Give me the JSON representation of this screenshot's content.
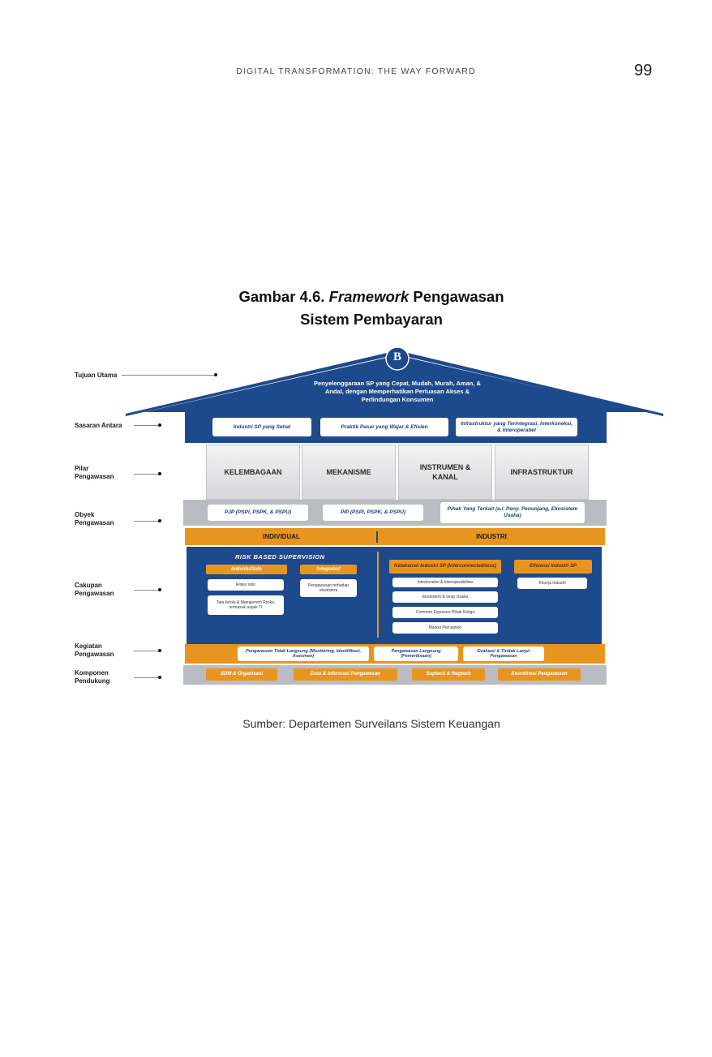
{
  "header": {
    "running_title": "DIGITAL TRANSFORMATION: THE WAY FORWARD",
    "page_number": "99"
  },
  "figure": {
    "title_prefix": "Gambar 4.6. ",
    "title_italic": "Framework",
    "title_suffix": " Pengawasan",
    "title_line2": "Sistem Pembayaran",
    "source": "Sumber: Departemen Surveilans Sistem Keuangan"
  },
  "diagram": {
    "labels": {
      "tujuan_utama": "Tujuan Utama",
      "sasaran_antara": "Sasaran Antara",
      "pilar_1": "Pilar",
      "pilar_2": "Pengawasan",
      "obyek_1": "Obyek",
      "obyek_2": "Pengawasan",
      "cakupan_1": "Cakupan",
      "cakupan_2": "Pengawasan",
      "kegiatan_1": "Kegiatan",
      "kegiatan_2": "Pengawasan",
      "komponen_1": "Komponen",
      "komponen_2": "Pendukung"
    },
    "roof": {
      "logo": "B",
      "line1": "Penyelenggaraan SP yang Cepat, Mudah, Murah, Aman, &",
      "line2": "Andal, dengan Memperhatikan Perluasan Akses &",
      "line3": "Perlindungan Konsumen"
    },
    "sasaran": [
      "Industri SP yang Sehat",
      "Praktik Pasar yang Wajar & Efisien",
      "Infrastruktur yang Terintegrasi, Interkoneksi, & Interoperabel"
    ],
    "pilar": [
      "KELEMBAGAAN",
      "MEKANISME",
      "INSTRUMEN & KANAL",
      "INFRASTRUKTUR"
    ],
    "obyek": [
      "PJP (PSPI, PSPK, & PSPU)",
      "PIP (PSPI, PSPK, & PSPU)",
      "Pihak Yang Terkait (a.l. Peny. Penunjang, Ekosistem Usaha)"
    ],
    "split": {
      "left": "INDIVIDUAL",
      "right": "INDUSTRI"
    },
    "cakupan": {
      "rbs": "RISK BASED SUPERVISION",
      "individu": "Individu/Solo",
      "integrated": "Integrated",
      "risiko_solo": "Risiko solo",
      "tata_kelola": "Tata kelola & Manajemen Risiko, termasuk aspek TI",
      "pengawasan_ekosistem": "Pengawasan terhadap ekosistem",
      "ketahanan": "Ketahanan Industri SP (Interconnectedness)",
      "efisiensi": "Efisiensi Industri SP",
      "interkoneksi": "Interkoneksi & Interoperabilitas",
      "ekosistem_grup": "Ekosistem & Grup Usaha",
      "common_exposure": "Common Exposure Pihak Ketiga",
      "market_perception": "Market Perception",
      "kinerja_industri": "Kinerja Industri"
    },
    "kegiatan": [
      "Pengawasan Tidak Langsung (Monitoring, Identifikasi, Asesmen)",
      "Pengawasan Langsung (Pemeriksaan)",
      "Evaluasi & Tindak Lanjut Pengawasan"
    ],
    "komponen": [
      "SDM & Organisasi",
      "Data & Informasi Pengawasan",
      "Suptech & Regtech",
      "Koordinasi Pengawasan"
    ]
  },
  "colors": {
    "blue": "#1d4a8c",
    "orange": "#e8951f",
    "grey": "#b9bcc2"
  }
}
